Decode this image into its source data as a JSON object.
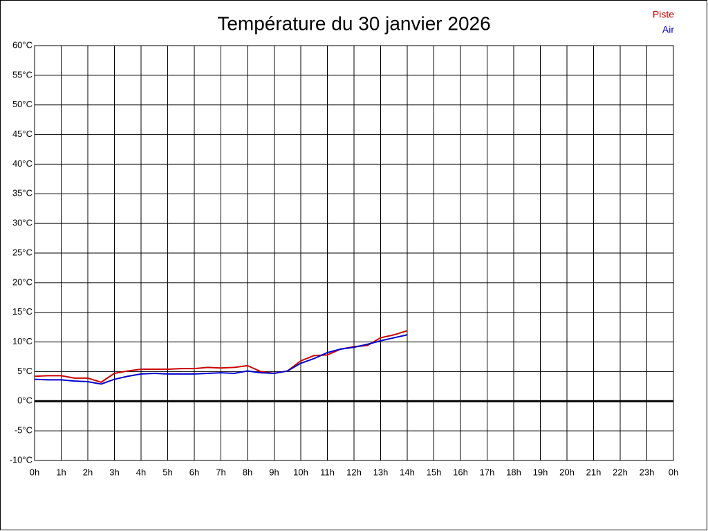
{
  "chart_data": {
    "type": "line",
    "title": "Température du 30 janvier 2026",
    "x": [
      0,
      0.5,
      1,
      1.5,
      2,
      2.5,
      3,
      3.5,
      4,
      4.5,
      5,
      5.5,
      6,
      6.5,
      7,
      7.5,
      8,
      8.5,
      9,
      9.5,
      10,
      10.5,
      11,
      11.5,
      12,
      12.5,
      13,
      13.5,
      14
    ],
    "series": [
      {
        "name": "Piste",
        "color": "#cc0000",
        "values": [
          4.2,
          4.3,
          4.3,
          3.9,
          3.9,
          3.2,
          4.7,
          5.1,
          5.4,
          5.4,
          5.4,
          5.5,
          5.5,
          5.7,
          5.6,
          5.7,
          6.0,
          5.0,
          4.7,
          5.1,
          6.8,
          7.7,
          7.8,
          8.8,
          9.2,
          9.4,
          10.7,
          11.2,
          11.9
        ]
      },
      {
        "name": "Air",
        "color": "#0000cc",
        "values": [
          3.7,
          3.6,
          3.6,
          3.4,
          3.3,
          2.9,
          3.7,
          4.2,
          4.6,
          4.7,
          4.6,
          4.6,
          4.6,
          4.7,
          4.8,
          4.7,
          5.1,
          4.8,
          4.7,
          5.1,
          6.4,
          7.2,
          8.2,
          8.8,
          9.1,
          9.6,
          10.2,
          10.7,
          11.2
        ]
      }
    ],
    "xlim": [
      0,
      24
    ],
    "xticks": [
      {
        "value": 0,
        "label": "0h"
      },
      {
        "value": 1,
        "label": "1h"
      },
      {
        "value": 2,
        "label": "2h"
      },
      {
        "value": 3,
        "label": "3h"
      },
      {
        "value": 4,
        "label": "4h"
      },
      {
        "value": 5,
        "label": "5h"
      },
      {
        "value": 6,
        "label": "6h"
      },
      {
        "value": 7,
        "label": "7h"
      },
      {
        "value": 8,
        "label": "8h"
      },
      {
        "value": 9,
        "label": "9h"
      },
      {
        "value": 10,
        "label": "10h"
      },
      {
        "value": 11,
        "label": "11h"
      },
      {
        "value": 12,
        "label": "12h"
      },
      {
        "value": 13,
        "label": "13h"
      },
      {
        "value": 14,
        "label": "14h"
      },
      {
        "value": 15,
        "label": "15h"
      },
      {
        "value": 16,
        "label": "16h"
      },
      {
        "value": 17,
        "label": "17h"
      },
      {
        "value": 18,
        "label": "18h"
      },
      {
        "value": 19,
        "label": "19h"
      },
      {
        "value": 20,
        "label": "20h"
      },
      {
        "value": 21,
        "label": "21h"
      },
      {
        "value": 22,
        "label": "22h"
      },
      {
        "value": 23,
        "label": "23h"
      },
      {
        "value": 24,
        "label": "0h"
      }
    ],
    "ylim": [
      -10,
      60
    ],
    "yticks": [
      {
        "value": -10,
        "label": "-10°C"
      },
      {
        "value": -5,
        "label": "-5°C"
      },
      {
        "value": 0,
        "label": "0°C"
      },
      {
        "value": 5,
        "label": "5°C"
      },
      {
        "value": 10,
        "label": "10°C"
      },
      {
        "value": 15,
        "label": "15°C"
      },
      {
        "value": 20,
        "label": "20°C"
      },
      {
        "value": 25,
        "label": "25°C"
      },
      {
        "value": 30,
        "label": "30°C"
      },
      {
        "value": 35,
        "label": "35°C"
      },
      {
        "value": 40,
        "label": "40°C"
      },
      {
        "value": 45,
        "label": "45°C"
      },
      {
        "value": 50,
        "label": "50°C"
      },
      {
        "value": 55,
        "label": "55°C"
      },
      {
        "value": 60,
        "label": "60°C"
      }
    ],
    "grid": true,
    "legend": "top-right"
  }
}
